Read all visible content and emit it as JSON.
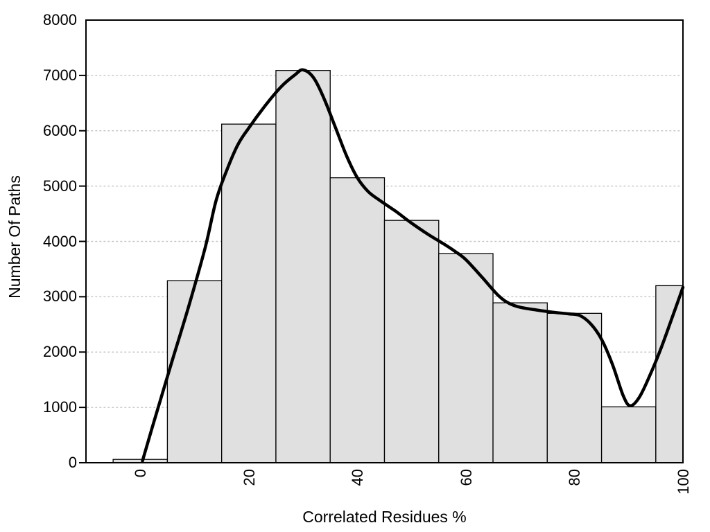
{
  "chart_data": {
    "type": "bar",
    "subtype": "histogram_with_smoothed_curve",
    "title": "",
    "xlabel": "Correlated Residues %",
    "ylabel": "Number Of Paths",
    "xlim": [
      -10,
      100
    ],
    "ylim": [
      0,
      8000
    ],
    "x_ticks": [
      0,
      20,
      40,
      60,
      80,
      100
    ],
    "y_ticks": [
      0,
      1000,
      2000,
      3000,
      4000,
      5000,
      6000,
      7000,
      8000
    ],
    "grid": "horizontal dotted lines at each 1000, none vertical",
    "legend": "none",
    "x_tick_label_rotation_deg": -90,
    "bin_width": 10,
    "bars": [
      {
        "x_start": -5,
        "x_end": 5,
        "value": 60
      },
      {
        "x_start": 5,
        "x_end": 15,
        "value": 3290
      },
      {
        "x_start": 15,
        "x_end": 25,
        "value": 6120
      },
      {
        "x_start": 25,
        "x_end": 35,
        "value": 7090
      },
      {
        "x_start": 35,
        "x_end": 45,
        "value": 5150
      },
      {
        "x_start": 45,
        "x_end": 55,
        "value": 4380
      },
      {
        "x_start": 55,
        "x_end": 65,
        "value": 3780
      },
      {
        "x_start": 65,
        "x_end": 75,
        "value": 2890
      },
      {
        "x_start": 75,
        "x_end": 85,
        "value": 2700
      },
      {
        "x_start": 85,
        "x_end": 95,
        "value": 1010
      },
      {
        "x_start": 95,
        "x_end": 100,
        "value": 3200
      }
    ],
    "curve": {
      "name": "smoothed-trend-curve",
      "points": [
        [
          0.4,
          30
        ],
        [
          3,
          900
        ],
        [
          6,
          1880
        ],
        [
          9,
          2850
        ],
        [
          12,
          3900
        ],
        [
          14,
          4750
        ],
        [
          16,
          5300
        ],
        [
          18,
          5750
        ],
        [
          20,
          6050
        ],
        [
          23,
          6450
        ],
        [
          26,
          6800
        ],
        [
          28.5,
          7010
        ],
        [
          30,
          7100
        ],
        [
          32,
          6950
        ],
        [
          34,
          6550
        ],
        [
          36,
          6050
        ],
        [
          38,
          5550
        ],
        [
          40,
          5150
        ],
        [
          42,
          4900
        ],
        [
          44,
          4750
        ],
        [
          47,
          4550
        ],
        [
          50,
          4330
        ],
        [
          53,
          4130
        ],
        [
          56,
          3950
        ],
        [
          58,
          3820
        ],
        [
          60,
          3670
        ],
        [
          63,
          3350
        ],
        [
          66,
          3020
        ],
        [
          68,
          2880
        ],
        [
          70,
          2810
        ],
        [
          73,
          2760
        ],
        [
          76,
          2720
        ],
        [
          79,
          2690
        ],
        [
          81,
          2660
        ],
        [
          83,
          2510
        ],
        [
          85,
          2230
        ],
        [
          87,
          1780
        ],
        [
          89,
          1210
        ],
        [
          90.3,
          1030
        ],
        [
          92,
          1190
        ],
        [
          94,
          1600
        ],
        [
          96,
          2080
        ],
        [
          98,
          2620
        ],
        [
          100,
          3170
        ]
      ]
    },
    "colors": {
      "background": "#ffffff",
      "bar_fill": "#e0e0e0",
      "bar_border": "#000000",
      "curve": "#000000",
      "grid": "#c6c6c6",
      "axis_box": "#000000",
      "text": "#000000"
    }
  }
}
